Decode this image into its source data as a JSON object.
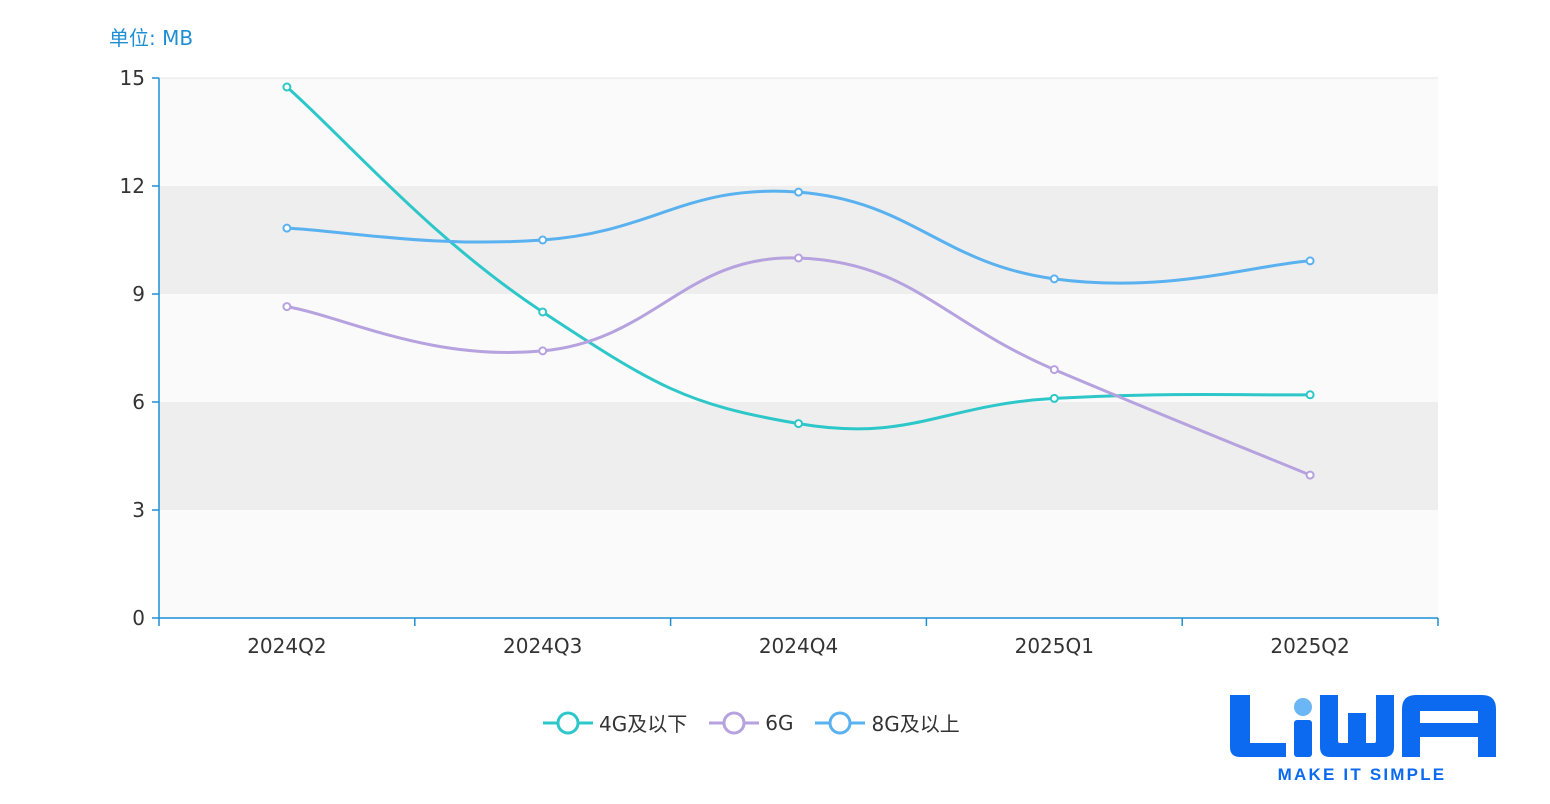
{
  "unit_label": "单位: MB",
  "colors": {
    "series": [
      "#2EC7C9",
      "#B6A2DE",
      "#5AB1EF"
    ],
    "axis": "#1F8FD3",
    "band_dark": "#EEEEEE",
    "band_light": "#FAFAFA",
    "brand": "#0B6AF0"
  },
  "logo": {
    "wordmark": "LiWA",
    "tagline": "MAKE IT SIMPLE"
  },
  "chart_data": {
    "type": "line",
    "smooth": true,
    "title": "",
    "xlabel": "",
    "ylabel": "单位: MB",
    "categories": [
      "2024Q2",
      "2024Q3",
      "2024Q4",
      "2025Q1",
      "2025Q2"
    ],
    "ylim": [
      0,
      15
    ],
    "yticks": [
      0,
      3,
      6,
      9,
      12,
      15
    ],
    "grid": "alternating horizontal bands",
    "legend_position": "bottom-center",
    "series": [
      {
        "name": "4G及以下",
        "values": [
          14.75,
          8.5,
          5.4,
          6.1,
          6.2
        ]
      },
      {
        "name": "6G",
        "values": [
          8.65,
          7.42,
          10.0,
          6.9,
          3.97
        ]
      },
      {
        "name": "8G及以上",
        "values": [
          10.83,
          10.5,
          11.83,
          9.42,
          9.92
        ]
      }
    ]
  }
}
